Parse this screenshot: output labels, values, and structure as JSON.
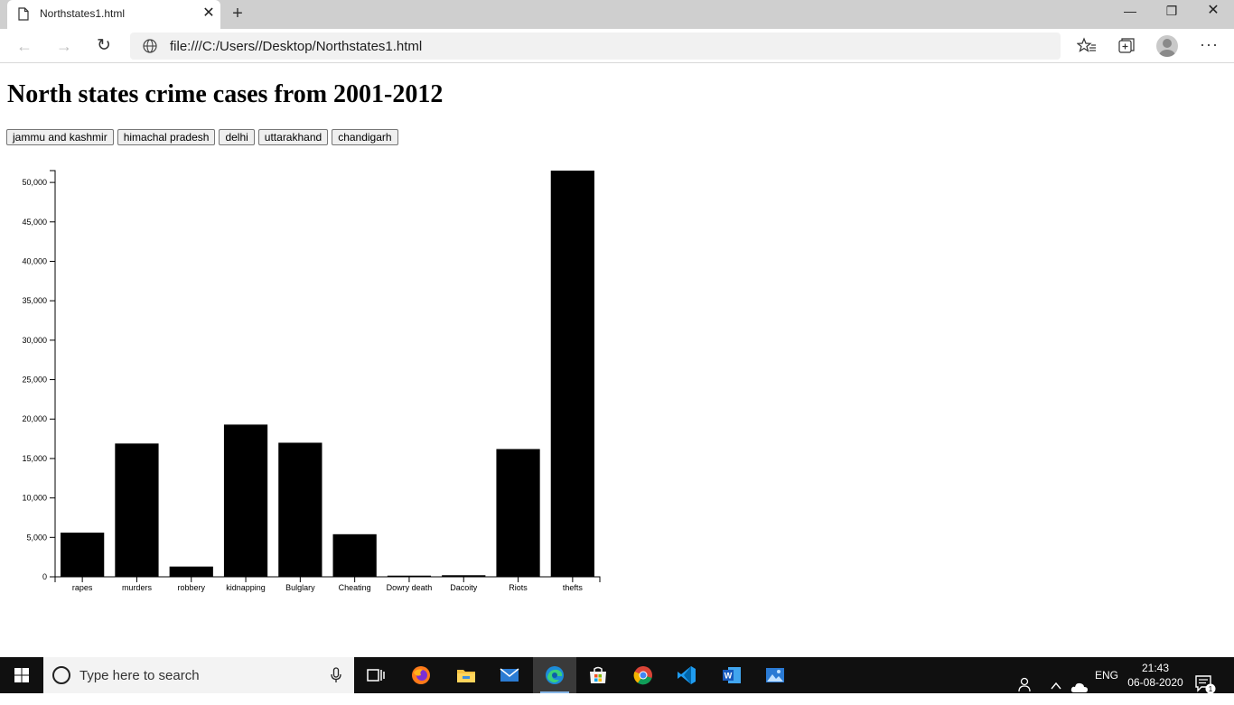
{
  "browser": {
    "tab_title": "Northstates1.html",
    "tab_close": "✕",
    "new_tab": "+",
    "url": "file:///C:/Users//Desktop/Northstates1.html",
    "window_min": "—",
    "window_restore": "❐",
    "window_close": "✕",
    "more": "···"
  },
  "page": {
    "title": "North states crime cases from 2001-2012",
    "buttons": [
      "jammu and kashmir",
      "himachal pradesh",
      "delhi",
      "uttarakhand",
      "chandigarh"
    ]
  },
  "chart_data": {
    "type": "bar",
    "title": "",
    "xlabel": "",
    "ylabel": "",
    "categories": [
      "rapes",
      "murders",
      "robbery",
      "kidnapping",
      "Bulglary",
      "Cheating",
      "Dowry death",
      "Dacoity",
      "Riots",
      "thefts"
    ],
    "values": [
      5600,
      16900,
      1300,
      19300,
      17000,
      5400,
      150,
      200,
      16200,
      51500
    ],
    "ylim": [
      0,
      51500
    ],
    "yticks": [
      0,
      5000,
      10000,
      15000,
      20000,
      25000,
      30000,
      35000,
      40000,
      45000,
      50000
    ],
    "ytick_labels": [
      "0",
      "5,000",
      "10,000",
      "15,000",
      "20,000",
      "25,000",
      "30,000",
      "35,000",
      "40,000",
      "45,000",
      "50,000"
    ],
    "grid": false,
    "bar_color": "#000000"
  },
  "taskbar": {
    "search_placeholder": "Type here to search",
    "language": "ENG",
    "time": "21:43",
    "date": "06-08-2020",
    "notification_count": "1",
    "apps": [
      "task-view",
      "firefox",
      "file-explorer",
      "mail",
      "edge",
      "store",
      "chrome",
      "vscode",
      "word",
      "photos"
    ]
  }
}
